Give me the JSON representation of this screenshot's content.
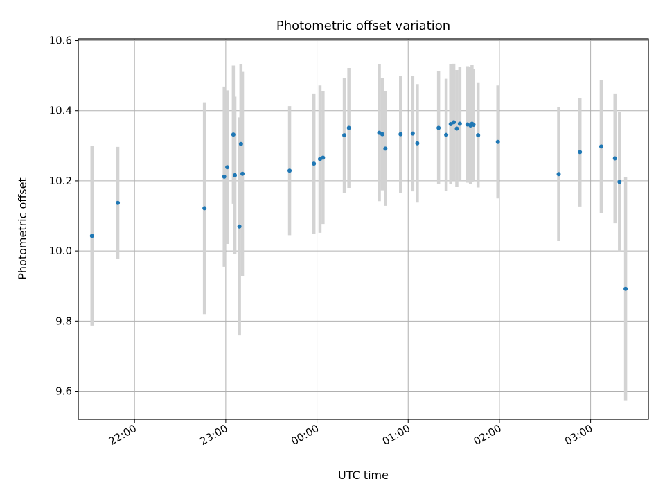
{
  "chart_data": {
    "type": "scatter",
    "title": "Photometric offset variation",
    "xlabel": "UTC time",
    "ylabel": "Photometric offset",
    "grid": true,
    "ylim": [
      9.52,
      10.605
    ],
    "xlim": [
      "21:23",
      "03:38"
    ],
    "x_ticks": [
      "22:00",
      "23:00",
      "00:00",
      "01:00",
      "02:00",
      "03:00"
    ],
    "y_ticks": [
      "9.6",
      "9.8",
      "10.0",
      "10.2",
      "10.4",
      "10.6"
    ],
    "colors": {
      "points": "#1f77b4",
      "errorbars": "#d3d3d3",
      "grid": "#b0b0b0"
    },
    "series": [
      {
        "x": [
          "21:32",
          "21:49",
          "22:46",
          "22:59",
          "23:01",
          "23:05",
          "23:06",
          "23:09",
          "23:10",
          "23:11",
          "23:42",
          "23:58",
          "00:02",
          "00:04",
          "00:18",
          "00:21",
          "00:41",
          "00:43",
          "00:45",
          "00:55",
          "01:03",
          "01:06",
          "01:20",
          "01:25",
          "01:28",
          "01:30",
          "01:32",
          "01:34",
          "01:39",
          "01:41",
          "01:42",
          "01:43",
          "01:46",
          "01:59",
          "02:39",
          "02:53",
          "03:07",
          "03:16",
          "03:19",
          "03:23"
        ],
        "y": [
          10.043,
          10.137,
          10.122,
          10.212,
          10.239,
          10.332,
          10.216,
          10.07,
          10.305,
          10.22,
          10.229,
          10.249,
          10.262,
          10.266,
          10.33,
          10.351,
          10.337,
          10.333,
          10.292,
          10.333,
          10.335,
          10.307,
          10.351,
          10.331,
          10.362,
          10.367,
          10.349,
          10.363,
          10.361,
          10.358,
          10.363,
          10.36,
          10.33,
          10.311,
          10.219,
          10.282,
          10.298,
          10.264,
          10.197,
          9.892
        ],
        "yerr": [
          0.256,
          0.16,
          0.302,
          0.257,
          0.219,
          0.197,
          0.224,
          0.311,
          0.227,
          0.291,
          0.184,
          0.2,
          0.21,
          0.189,
          0.164,
          0.171,
          0.195,
          0.16,
          0.163,
          0.167,
          0.165,
          0.169,
          0.161,
          0.16,
          0.17,
          0.167,
          0.167,
          0.163,
          0.166,
          0.168,
          0.167,
          0.16,
          0.149,
          0.161,
          0.191,
          0.155,
          0.19,
          0.185,
          0.2,
          0.318
        ]
      }
    ]
  }
}
